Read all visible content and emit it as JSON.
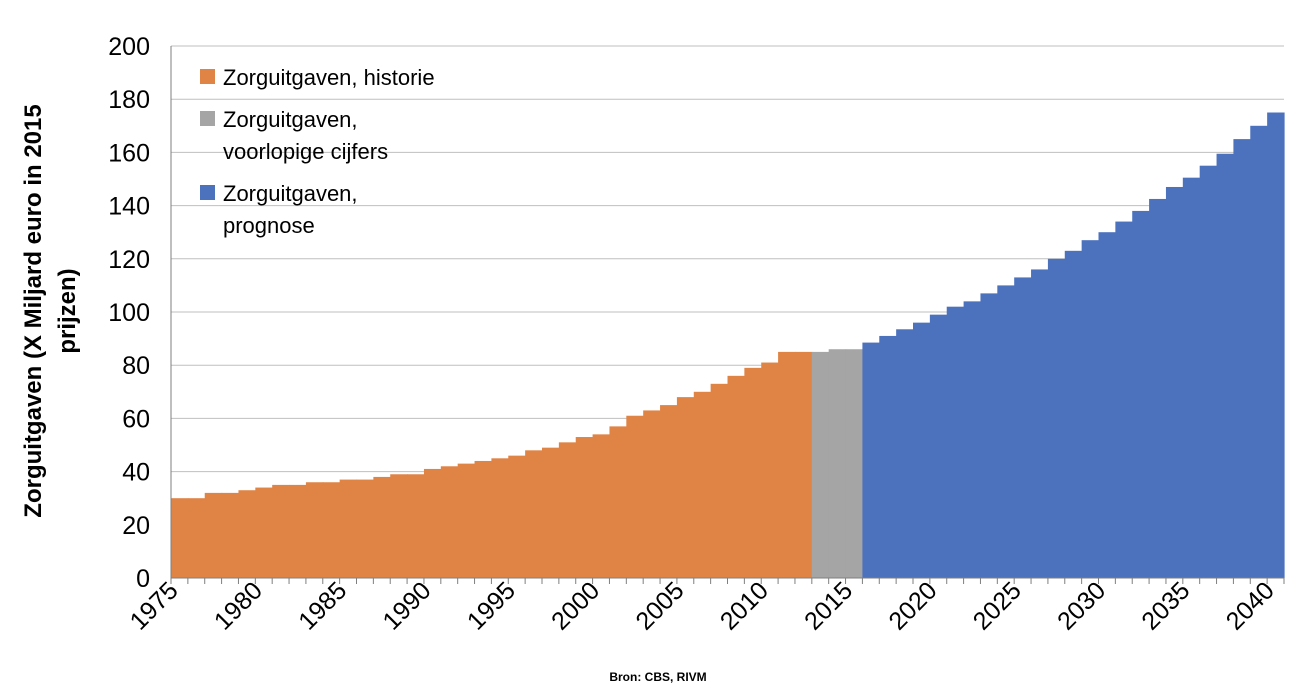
{
  "chart_data": {
    "type": "bar",
    "ylabel": "Zorguitgaven (X Miljard euro in 2015 prijzen)",
    "ylim": [
      0,
      200
    ],
    "yticks": [
      "0",
      "20",
      "40",
      "60",
      "80",
      "100",
      "120",
      "140",
      "160",
      "180",
      "200"
    ],
    "xticks": [
      "1975",
      "1980",
      "1985",
      "1990",
      "1995",
      "2000",
      "2005",
      "2010",
      "2015",
      "2020",
      "2025",
      "2030",
      "2035",
      "2040"
    ],
    "grid": true,
    "legend_position": "top-left",
    "source": "Bron: CBS, RIVM",
    "series": [
      {
        "name": "Zorguitgaven, historie",
        "color": "#E08446",
        "x": [
          1975,
          1976,
          1977,
          1978,
          1979,
          1980,
          1981,
          1982,
          1983,
          1984,
          1985,
          1986,
          1987,
          1988,
          1989,
          1990,
          1991,
          1992,
          1993,
          1994,
          1995,
          1996,
          1997,
          1998,
          1999,
          2000,
          2001,
          2002,
          2003,
          2004,
          2005,
          2006,
          2007,
          2008,
          2009,
          2010,
          2011,
          2012
        ],
        "values": [
          30,
          30,
          32,
          32,
          33,
          34,
          35,
          35,
          36,
          36,
          37,
          37,
          38,
          39,
          39,
          41,
          42,
          43,
          44,
          45,
          46,
          48,
          49,
          51,
          53,
          54,
          57,
          61,
          63,
          65,
          68,
          70,
          73,
          76,
          79,
          81,
          85,
          85
        ]
      },
      {
        "name": "Zorguitgaven, voorlopige cijfers",
        "color": "#A5A5A5",
        "x": [
          2013,
          2014,
          2015
        ],
        "values": [
          85,
          86,
          86
        ]
      },
      {
        "name": "Zorguitgaven, prognose",
        "color": "#4C72BE",
        "x": [
          2016,
          2017,
          2018,
          2019,
          2020,
          2021,
          2022,
          2023,
          2024,
          2025,
          2026,
          2027,
          2028,
          2029,
          2030,
          2031,
          2032,
          2033,
          2034,
          2035,
          2036,
          2037,
          2038,
          2039,
          2040
        ],
        "values": [
          88.5,
          91,
          93.5,
          96,
          99,
          102,
          104,
          107,
          110,
          113,
          116,
          120,
          123,
          127,
          130,
          134,
          138,
          142.5,
          147,
          150.5,
          155,
          159.5,
          165,
          170,
          175
        ]
      }
    ]
  }
}
